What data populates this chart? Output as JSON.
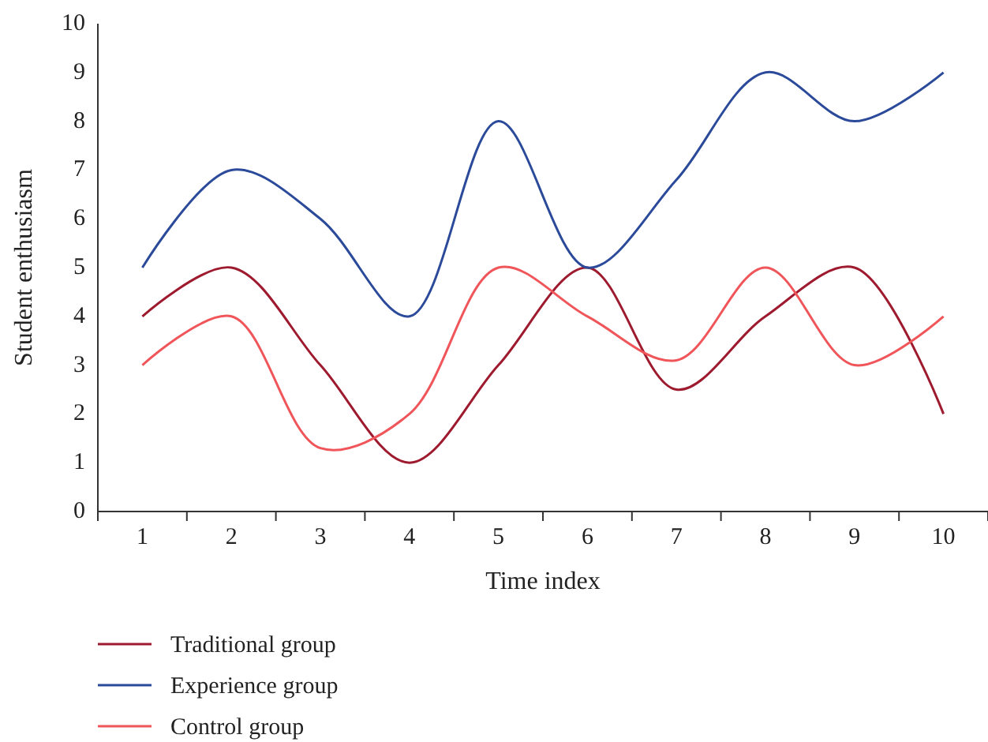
{
  "chart_data": {
    "type": "line",
    "xlabel": "Time index",
    "ylabel": "Student enthusiasm",
    "categories": [
      "1",
      "2",
      "3",
      "4",
      "5",
      "6",
      "7",
      "8",
      "9",
      "10"
    ],
    "series": [
      {
        "name": "Traditional group",
        "color": "#9e1a2e",
        "values": [
          4,
          5,
          3,
          1,
          3,
          5,
          2.5,
          4,
          5,
          2
        ]
      },
      {
        "name": "Experience group",
        "color": "#2b4a9a",
        "values": [
          5,
          7,
          6,
          4,
          8,
          5,
          6.8,
          9,
          8,
          9
        ]
      },
      {
        "name": "Control group",
        "color": "#f0555a",
        "values": [
          3,
          4,
          1.3,
          2,
          5,
          4,
          3.1,
          5,
          3,
          4
        ]
      }
    ],
    "ylim": [
      0,
      10
    ],
    "yticks": [
      0,
      1,
      2,
      3,
      4,
      5,
      6,
      7,
      8,
      9,
      10
    ],
    "grid": false,
    "legend": "bottom",
    "marker": "none",
    "line_style": "solid"
  }
}
